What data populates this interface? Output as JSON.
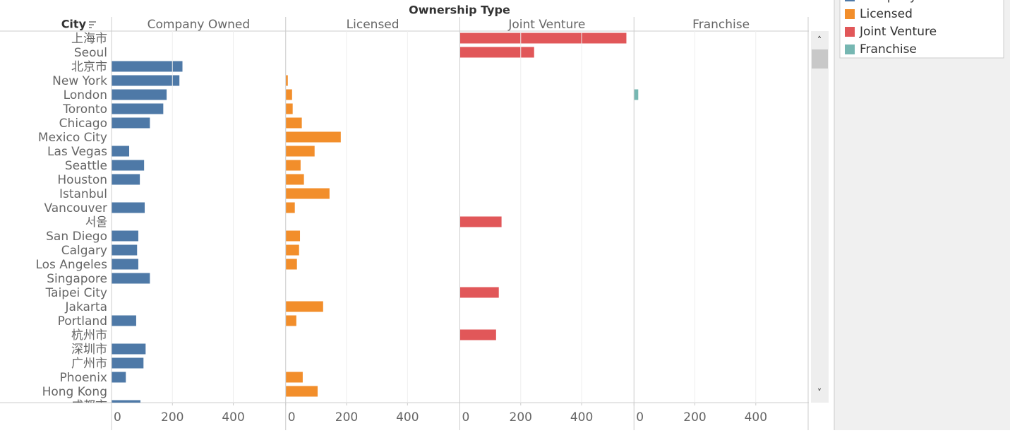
{
  "chart_data": {
    "type": "bar",
    "orientation": "horizontal",
    "title": "Ownership Type",
    "row_label": "City",
    "categories": [
      "上海市",
      "Seoul",
      "北京市",
      "New York",
      "London",
      "Toronto",
      "Chicago",
      "Mexico City",
      "Las Vegas",
      "Seattle",
      "Houston",
      "Istanbul",
      "Vancouver",
      "서울",
      "San Diego",
      "Calgary",
      "Los Angeles",
      "Singapore",
      "Taipei City",
      "Jakarta",
      "Portland",
      "杭州市",
      "深圳市",
      "广州市",
      "Phoenix",
      "Hong Kong",
      "成都市"
    ],
    "series": [
      {
        "name": "Company Owned",
        "color": "#4e79a7",
        "values": [
          null,
          null,
          233,
          223,
          181,
          170,
          126,
          null,
          58,
          107,
          93,
          null,
          109,
          null,
          88,
          84,
          88,
          126,
          null,
          null,
          81,
          null,
          112,
          105,
          47,
          null,
          95
        ]
      },
      {
        "name": "Licensed",
        "color": "#f28e2b",
        "values": [
          null,
          null,
          null,
          7,
          21,
          23,
          53,
          181,
          95,
          49,
          60,
          144,
          30,
          null,
          47,
          44,
          37,
          null,
          null,
          123,
          35,
          null,
          null,
          null,
          56,
          105,
          null
        ]
      },
      {
        "name": "Joint Venture",
        "color": "#e15759",
        "values": [
          547,
          244,
          null,
          null,
          null,
          null,
          null,
          null,
          null,
          null,
          null,
          null,
          null,
          137,
          null,
          null,
          null,
          null,
          128,
          null,
          null,
          119,
          null,
          null,
          null,
          null,
          null
        ]
      },
      {
        "name": "Franchise",
        "color": "#76b7b2",
        "values": [
          null,
          null,
          null,
          null,
          14,
          null,
          null,
          null,
          null,
          null,
          null,
          null,
          null,
          null,
          null,
          null,
          null,
          null,
          null,
          null,
          null,
          null,
          null,
          null,
          null,
          null,
          null
        ]
      }
    ],
    "xlim": [
      0,
      572
    ],
    "xticks": [
      0,
      200,
      400
    ],
    "grid": true
  }
}
